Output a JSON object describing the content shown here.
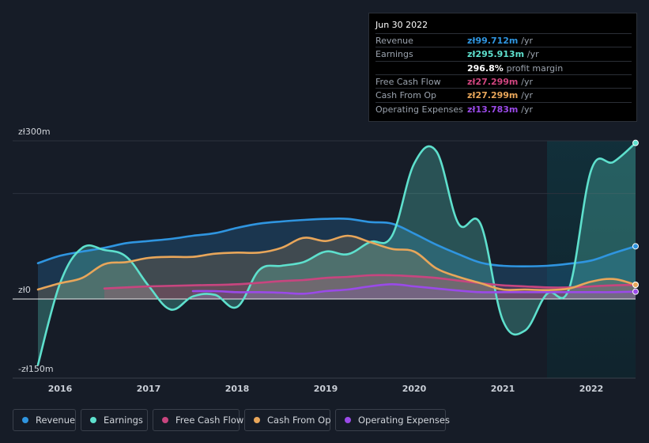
{
  "tooltip": {
    "date": "Jun 30 2022",
    "rows": [
      {
        "label": "Revenue",
        "value": "zł99.712m",
        "unit": "/yr",
        "color": "#2f95e0"
      },
      {
        "label": "Earnings",
        "value": "zł295.913m",
        "unit": "/yr",
        "color": "#5ee0cd"
      },
      {
        "label": "",
        "value": "296.8%",
        "unit": "profit margin",
        "color": "#ffffff"
      },
      {
        "label": "Free Cash Flow",
        "value": "zł27.299m",
        "unit": "/yr",
        "color": "#d0457f"
      },
      {
        "label": "Cash From Op",
        "value": "zł27.299m",
        "unit": "/yr",
        "color": "#e8a65a"
      },
      {
        "label": "Operating Expenses",
        "value": "zł13.783m",
        "unit": "/yr",
        "color": "#9a4ae8"
      }
    ]
  },
  "legend": [
    {
      "label": "Revenue",
      "color": "#2f95e0"
    },
    {
      "label": "Earnings",
      "color": "#5ee0cd"
    },
    {
      "label": "Free Cash Flow",
      "color": "#c8457f"
    },
    {
      "label": "Cash From Op",
      "color": "#e8a65a"
    },
    {
      "label": "Operating Expenses",
      "color": "#9a4ae8"
    }
  ],
  "chart_data": {
    "type": "area",
    "title": "",
    "y_axis_labels": {
      "top": "zł300m",
      "zero": "zł0",
      "bottom": "-zł150m"
    },
    "ylim": [
      -150,
      300
    ],
    "xlim": [
      2015.75,
      2022.5
    ],
    "x_ticks": [
      {
        "label": "2016",
        "value": 2016
      },
      {
        "label": "2017",
        "value": 2017
      },
      {
        "label": "2018",
        "value": 2018
      },
      {
        "label": "2019",
        "value": 2019
      },
      {
        "label": "2020",
        "value": 2020
      },
      {
        "label": "2021",
        "value": 2021
      },
      {
        "label": "2022",
        "value": 2022
      }
    ],
    "highlight_range": [
      2021.5,
      2022.5
    ],
    "series": [
      {
        "name": "Revenue",
        "color": "#2f95e0",
        "x": [
          2015.75,
          2016.0,
          2016.25,
          2016.5,
          2016.75,
          2017.0,
          2017.25,
          2017.5,
          2017.75,
          2018.0,
          2018.25,
          2018.5,
          2018.75,
          2019.0,
          2019.25,
          2019.5,
          2019.75,
          2020.0,
          2020.25,
          2020.5,
          2020.75,
          2021.0,
          2021.25,
          2021.5,
          2021.75,
          2022.0,
          2022.25,
          2022.5
        ],
        "y": [
          68,
          82,
          90,
          97,
          106,
          110,
          114,
          120,
          125,
          135,
          143,
          147,
          150,
          152,
          152,
          146,
          143,
          124,
          103,
          85,
          69,
          63,
          62,
          63,
          67,
          73,
          87,
          100
        ]
      },
      {
        "name": "Earnings",
        "color": "#5ee0cd",
        "x": [
          2015.75,
          2016.0,
          2016.25,
          2016.5,
          2016.75,
          2017.0,
          2017.25,
          2017.5,
          2017.75,
          2018.0,
          2018.25,
          2018.5,
          2018.75,
          2019.0,
          2019.25,
          2019.5,
          2019.75,
          2020.0,
          2020.25,
          2020.5,
          2020.75,
          2021.0,
          2021.25,
          2021.5,
          2021.75,
          2022.0,
          2022.25,
          2022.5
        ],
        "y": [
          -125,
          30,
          97,
          93,
          80,
          25,
          -20,
          5,
          8,
          -15,
          55,
          63,
          70,
          90,
          85,
          108,
          120,
          257,
          280,
          143,
          142,
          -40,
          -60,
          10,
          20,
          245,
          260,
          296
        ]
      },
      {
        "name": "Free Cash Flow",
        "color": "#c8457f",
        "x": [
          2016.5,
          2016.75,
          2017.0,
          2017.5,
          2018.0,
          2018.5,
          2018.75,
          2019.0,
          2019.25,
          2019.5,
          2019.75,
          2020.0,
          2020.25,
          2020.5,
          2020.75,
          2021.0,
          2021.25,
          2021.5,
          2021.75,
          2022.0,
          2022.25,
          2022.5
        ],
        "y": [
          20,
          22,
          24,
          26,
          28,
          34,
          36,
          40,
          42,
          45,
          45,
          43,
          40,
          35,
          30,
          26,
          24,
          22,
          22,
          24,
          26,
          27
        ]
      },
      {
        "name": "Cash From Op",
        "color": "#e8a65a",
        "x": [
          2015.75,
          2016.0,
          2016.25,
          2016.5,
          2016.75,
          2017.0,
          2017.25,
          2017.5,
          2017.75,
          2018.0,
          2018.25,
          2018.5,
          2018.75,
          2019.0,
          2019.25,
          2019.5,
          2019.75,
          2020.0,
          2020.25,
          2020.5,
          2020.75,
          2021.0,
          2021.25,
          2021.5,
          2021.75,
          2022.0,
          2022.25,
          2022.5
        ],
        "y": [
          18,
          30,
          40,
          66,
          70,
          78,
          80,
          80,
          86,
          88,
          88,
          97,
          116,
          110,
          120,
          108,
          95,
          90,
          58,
          42,
          30,
          18,
          18,
          17,
          20,
          33,
          38,
          27
        ]
      },
      {
        "name": "Operating Expenses",
        "color": "#9a4ae8",
        "x": [
          2017.5,
          2017.75,
          2018.0,
          2018.25,
          2018.5,
          2018.75,
          2019.0,
          2019.25,
          2019.5,
          2019.75,
          2020.0,
          2020.25,
          2020.5,
          2020.75,
          2021.0,
          2021.25,
          2021.5,
          2021.75,
          2022.0,
          2022.25,
          2022.5
        ],
        "y": [
          15,
          15,
          13,
          13,
          12,
          10,
          15,
          18,
          24,
          28,
          24,
          20,
          16,
          13,
          13,
          13,
          13,
          13,
          13,
          13,
          14
        ]
      }
    ]
  }
}
